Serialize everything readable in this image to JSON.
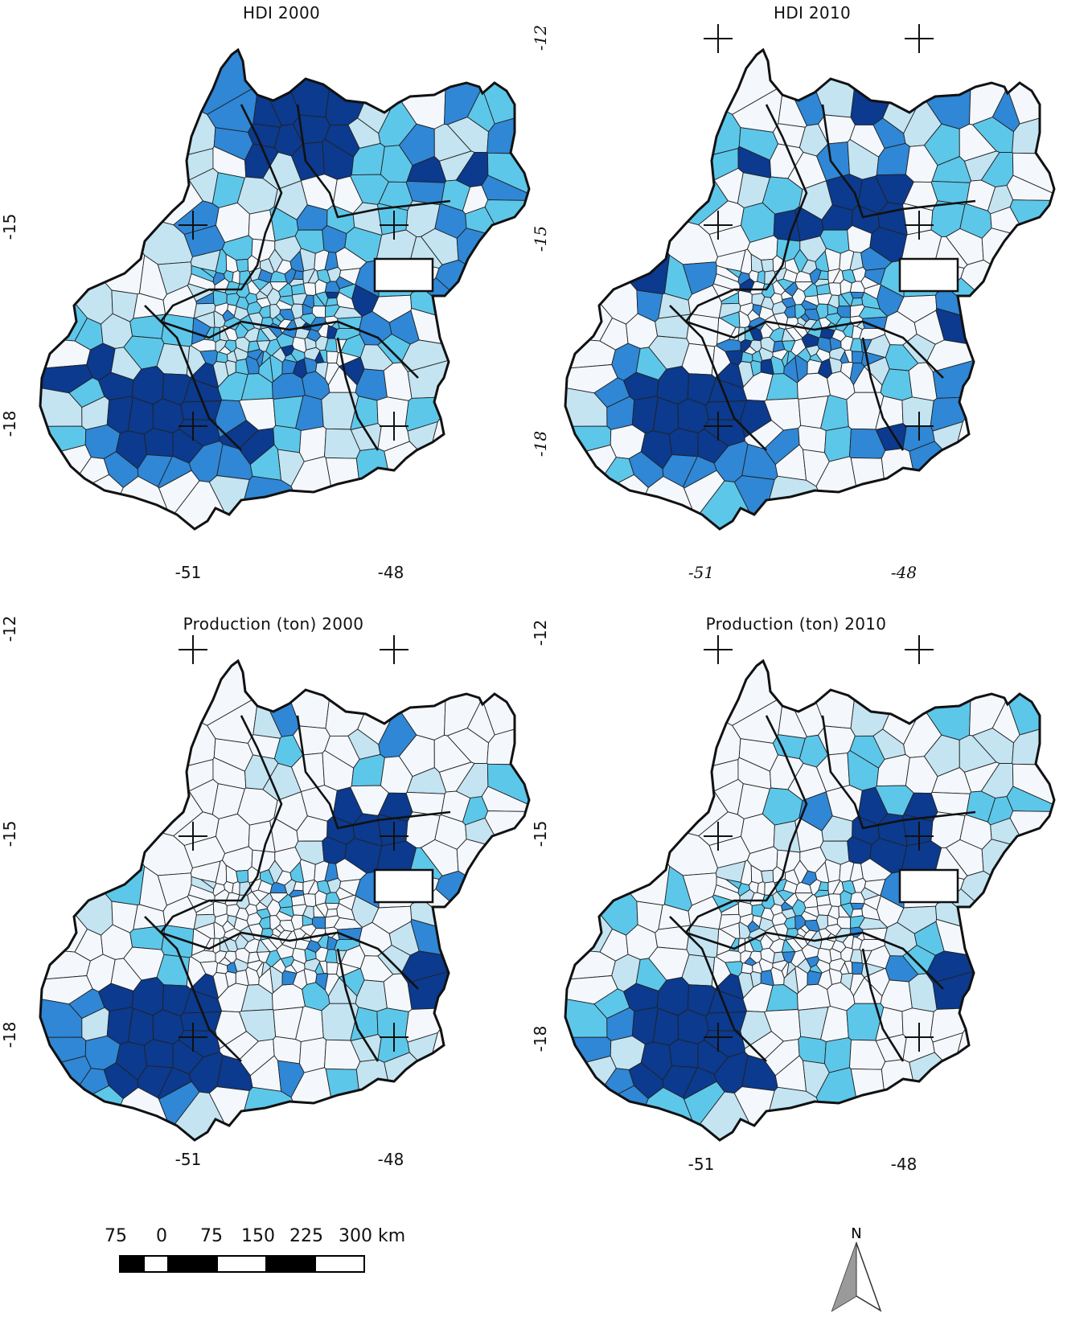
{
  "panels": [
    {
      "title": "HDI 2000",
      "y_ticks": [
        "-15",
        "-18"
      ],
      "x_ticks": [
        "-51",
        "-48"
      ]
    },
    {
      "title": "HDI 2010",
      "y_ticks": [
        "-12",
        "-15",
        "-18"
      ],
      "x_ticks": [
        "-51",
        "-48"
      ]
    },
    {
      "title": "Production (ton) 2000",
      "y_ticks": [
        "-12",
        "-15",
        "-18"
      ],
      "x_ticks": [
        "-51",
        "-48"
      ]
    },
    {
      "title": "Production (ton) 2010",
      "y_ticks": [
        "-12",
        "-15",
        "-18"
      ],
      "x_ticks": [
        "-51",
        "-48"
      ]
    }
  ],
  "scale": {
    "labels": [
      "75",
      "0",
      "75",
      "150",
      "225",
      "300 km"
    ]
  },
  "north": {
    "label": "N"
  },
  "colors": {
    "class_1": "#f4f8fc",
    "class_2": "#c4e4f2",
    "class_3": "#5dc7ea",
    "class_4": "#2f87d6",
    "class_5": "#0b3a8e",
    "border": "#111111"
  },
  "icons": {
    "graticule": "cross-icon",
    "north": "north-arrow-icon"
  }
}
